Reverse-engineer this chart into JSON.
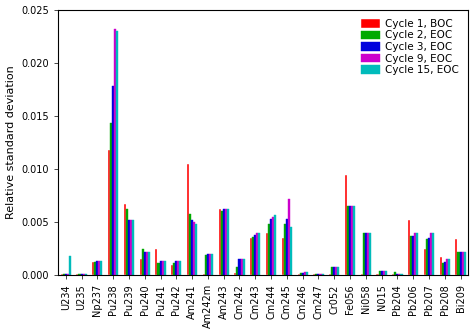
{
  "nuclides": [
    "U234",
    "U235",
    "Np237",
    "Pu238",
    "Pu239",
    "Pu240",
    "Pu241",
    "Pu242",
    "Am241",
    "Am242m",
    "Am243",
    "Cm242",
    "Cm243",
    "Cm244",
    "Cm245",
    "Cm246",
    "Cm247",
    "Cr052",
    "Fe056",
    "Ni058",
    "N015",
    "Pb204",
    "Pb206",
    "Pb207",
    "Pb208",
    "Bi209"
  ],
  "series": {
    "Cycle 1, BOC": [
      0.0001,
      0.0001,
      0.0012,
      0.0118,
      0.0067,
      0.0015,
      0.0025,
      0.001,
      0.0105,
      0.0001,
      0.0062,
      0.0002,
      0.0035,
      0.004,
      0.0035,
      0.0001,
      0.0001,
      0.0001,
      0.0094,
      0.0001,
      0.0001,
      0.0001,
      0.0052,
      0.0025,
      0.0017,
      0.0034
    ],
    "Cycle 2, EOC": [
      0.0001,
      0.0001,
      0.0012,
      0.0143,
      0.0062,
      0.0025,
      0.0011,
      0.0011,
      0.0058,
      0.0019,
      0.006,
      0.0008,
      0.0036,
      0.0048,
      0.0048,
      0.0002,
      0.0001,
      0.0008,
      0.0065,
      0.004,
      0.0004,
      0.0003,
      0.0037,
      0.0034,
      0.0011,
      0.0022
    ],
    "Cycle 3, EOC": [
      0.0001,
      0.0001,
      0.0013,
      0.0178,
      0.0052,
      0.0022,
      0.0013,
      0.0013,
      0.0052,
      0.002,
      0.0062,
      0.0015,
      0.0038,
      0.0053,
      0.0053,
      0.0002,
      0.0001,
      0.0008,
      0.0065,
      0.004,
      0.0004,
      0.0001,
      0.0037,
      0.0035,
      0.0012,
      0.0022
    ],
    "Cycle 9, EOC": [
      0.0001,
      0.0001,
      0.0013,
      0.0232,
      0.0052,
      0.0022,
      0.0013,
      0.0013,
      0.005,
      0.002,
      0.0062,
      0.0015,
      0.004,
      0.0055,
      0.0072,
      0.0003,
      0.0001,
      0.0008,
      0.0065,
      0.004,
      0.0004,
      0.0001,
      0.004,
      0.004,
      0.0015,
      0.0022
    ],
    "Cycle 15, EOC": [
      0.0018,
      0.0001,
      0.0013,
      0.023,
      0.0052,
      0.0022,
      0.0013,
      0.0013,
      0.0048,
      0.002,
      0.0062,
      0.0015,
      0.004,
      0.0057,
      0.0045,
      0.0003,
      0.0001,
      0.0008,
      0.0065,
      0.004,
      0.0004,
      0.0001,
      0.004,
      0.004,
      0.0015,
      0.0022
    ]
  },
  "colors": {
    "Cycle 1, BOC": "#ff0000",
    "Cycle 2, EOC": "#00aa00",
    "Cycle 3, EOC": "#0000dd",
    "Cycle 9, EOC": "#cc00cc",
    "Cycle 15, EOC": "#00bbbb"
  },
  "hatches": {
    "Cycle 1, BOC": "",
    "Cycle 2, EOC": "////",
    "Cycle 3, EOC": "////",
    "Cycle 9, EOC": "....",
    "Cycle 15, EOC": "...."
  },
  "ylabel": "Relative standard deviation",
  "ylim": [
    0,
    0.025
  ],
  "yticks": [
    0.0,
    0.005,
    0.01,
    0.015,
    0.02,
    0.025
  ],
  "background_color": "#ffffff",
  "legend_fontsize": 7.5,
  "tick_fontsize": 7
}
